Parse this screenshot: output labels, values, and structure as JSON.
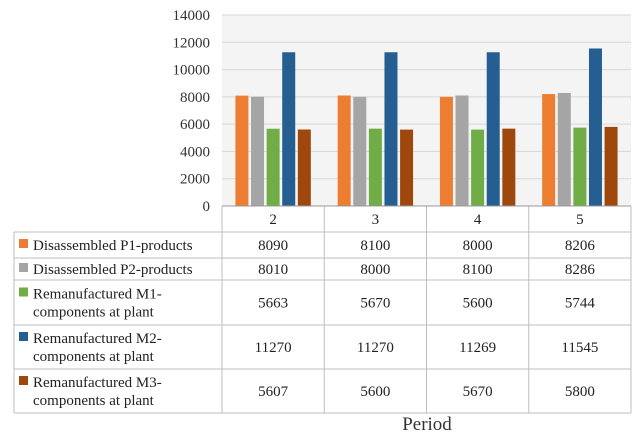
{
  "chart_data": {
    "type": "bar",
    "categories": [
      "2",
      "3",
      "4",
      "5"
    ],
    "series": [
      {
        "name": "Disassembled P1-products",
        "color": "#ED7D31",
        "values": [
          8090,
          8100,
          8000,
          8206
        ]
      },
      {
        "name": "Disassembled P2-products",
        "color": "#A5A5A5",
        "values": [
          8010,
          8000,
          8100,
          8286
        ]
      },
      {
        "name": "Remanufactured M1-components at plant",
        "color": "#70AD47",
        "values": [
          5663,
          5670,
          5600,
          5744
        ]
      },
      {
        "name": "Remanufactured M2-components  at plant",
        "color": "#255E91",
        "values": [
          11270,
          11270,
          11269,
          11545
        ]
      },
      {
        "name": "Remanufactured M3-components  at plant",
        "color": "#9E480E",
        "values": [
          5607,
          5600,
          5670,
          5800
        ]
      }
    ],
    "yticks": [
      "0",
      "2000",
      "4000",
      "6000",
      "8000",
      "10000",
      "12000",
      "14000"
    ],
    "ylim": [
      0,
      14000
    ],
    "xlabel": "Period",
    "grid": true,
    "legend": "data-table"
  }
}
